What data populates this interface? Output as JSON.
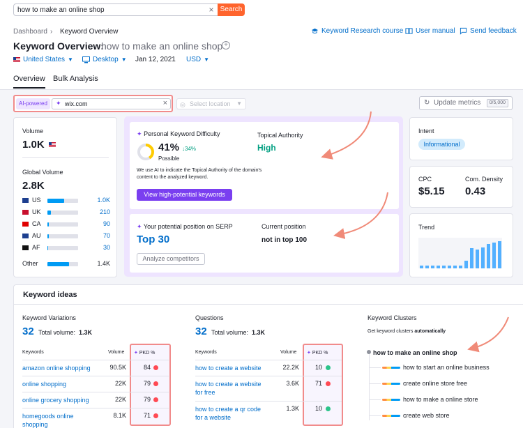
{
  "search": {
    "value": "how to make an online shop",
    "button": "Search"
  },
  "breadcrumb": {
    "root": "Dashboard",
    "current": "Keyword Overview"
  },
  "header_links": {
    "course": "Keyword Research course",
    "manual": "User manual",
    "feedback": "Send feedback"
  },
  "title": {
    "label": "Keyword Overview:",
    "query": "how to make an online shop"
  },
  "controls": {
    "country": "United States",
    "device": "Desktop",
    "date": "Jan 12, 2021",
    "currency": "USD"
  },
  "tabs": [
    "Overview",
    "Bulk Analysis"
  ],
  "filter": {
    "badge": "AI-powered",
    "domain": "wix.com",
    "location_placeholder": "Select location"
  },
  "update": {
    "label": "Update metrics",
    "count": "0/5,000"
  },
  "volume": {
    "label": "Volume",
    "value": "1.0K",
    "global_label": "Global Volume",
    "global_value": "2.8K",
    "countries": [
      {
        "code": "US",
        "value": "1.0K",
        "fill": 0.55
      },
      {
        "code": "UK",
        "value": "210",
        "fill": 0.12
      },
      {
        "code": "CA",
        "value": "90",
        "fill": 0.05
      },
      {
        "code": "AU",
        "value": "70",
        "fill": 0.04
      },
      {
        "code": "AF",
        "value": "30",
        "fill": 0.02
      }
    ],
    "other_label": "Other",
    "other_value": "1.4K",
    "other_fill": 0.7
  },
  "pkd_card": {
    "label": "Personal Keyword Difficulty",
    "value": "41%",
    "change": "↓34%",
    "level": "Possible",
    "gauge_fraction": 0.41,
    "authority_label": "Topical Authority",
    "authority_value": "High",
    "description_line1": "We use AI to indicate the Topical Authority of the domain's",
    "description_line2": "content to the analyzed keyword.",
    "button": "View high-potential keywords"
  },
  "serp_card": {
    "label": "Your potential position on SERP",
    "value": "Top 30",
    "current_label": "Current position",
    "current_value": "not in top 100",
    "button": "Analyze competitors"
  },
  "intent": {
    "label": "Intent",
    "value": "Informational"
  },
  "cpc": {
    "label": "CPC",
    "value": "$5.15"
  },
  "density": {
    "label": "Com. Density",
    "value": "0.43"
  },
  "trend": {
    "label": "Trend",
    "values": [
      0.08,
      0.08,
      0.08,
      0.08,
      0.08,
      0.08,
      0.08,
      0.1,
      0.25,
      0.65,
      0.62,
      0.68,
      0.8,
      0.85,
      0.88
    ]
  },
  "ideas": {
    "title": "Keyword ideas",
    "variations": {
      "title": "Keyword Variations",
      "count": "32",
      "volume_label": "Total volume:",
      "volume_value": "1.3K",
      "headers": [
        "Keywords",
        "Volume",
        "PKD %"
      ],
      "rows": [
        {
          "kw1": "amazon online shopping",
          "kw2": "",
          "vol": "90.5K",
          "pkd": "84",
          "color": "#ff4953"
        },
        {
          "kw1": "online shopping",
          "kw2": "",
          "vol": "22K",
          "pkd": "79",
          "color": "#ff4953"
        },
        {
          "kw1": "online grocery shopping",
          "kw2": "",
          "vol": "22K",
          "pkd": "79",
          "color": "#ff4953"
        },
        {
          "kw1": "homegoods online",
          "kw2": "shopping",
          "vol": "8.1K",
          "pkd": "71",
          "color": "#ff4953"
        }
      ]
    },
    "questions": {
      "title": "Questions",
      "count": "32",
      "volume_label": "Total volume:",
      "volume_value": "1.3K",
      "headers": [
        "Keywords",
        "Volume",
        "PKD %"
      ],
      "rows": [
        {
          "kw1": "how to create a website",
          "kw2": "",
          "vol": "22.2K",
          "pkd": "10",
          "color": "#2bc48a"
        },
        {
          "kw1": "how to create a website",
          "kw2": "for free",
          "vol": "3.6K",
          "pkd": "71",
          "color": "#ff4953"
        },
        {
          "kw1": "how to create a qr code",
          "kw2": "for a website",
          "vol": "1.3K",
          "pkd": "10",
          "color": "#2bc48a"
        }
      ]
    },
    "clusters": {
      "title": "Keyword Clusters",
      "subtitle": "Get keyword clusters",
      "subtitle_bold": "automatically",
      "root": "how to make an online shop",
      "items": [
        "how to start an online business",
        "create online store free",
        "how to make a online store",
        "create web store"
      ]
    }
  }
}
